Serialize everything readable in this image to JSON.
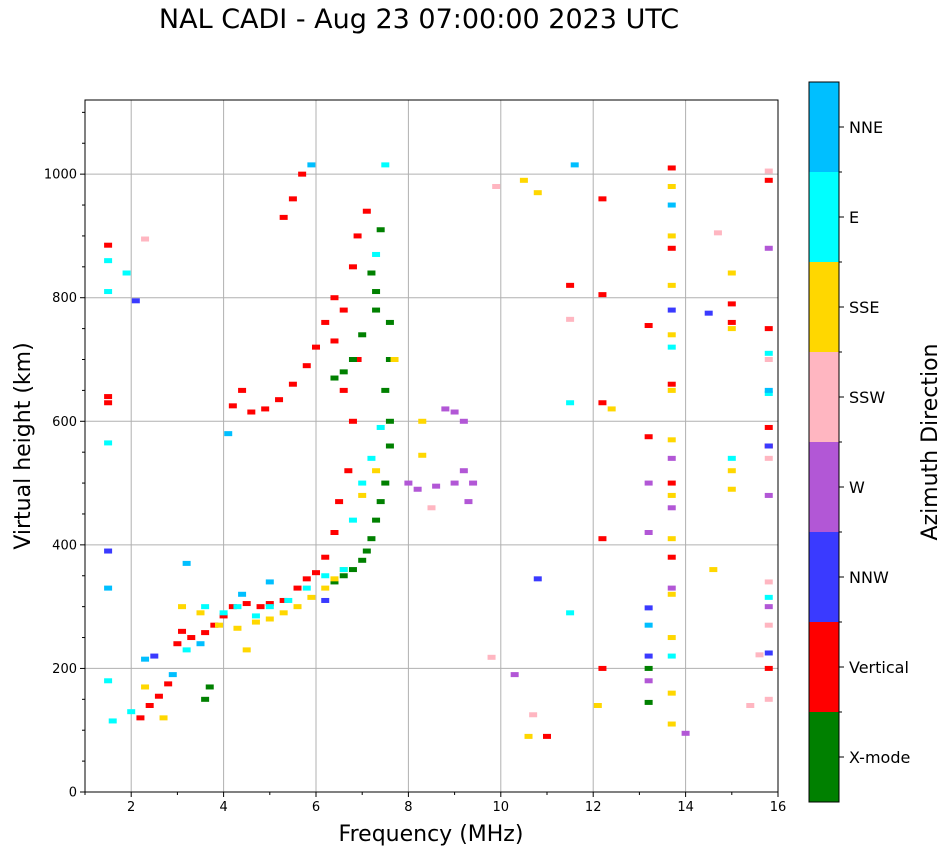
{
  "chart_data": {
    "type": "scatter",
    "title": "NAL CADI - Aug 23 07:00:00 2023 UTC",
    "xlabel": "Frequency (MHz)",
    "ylabel": "Virtual height (km)",
    "xlim": [
      1,
      16
    ],
    "ylim": [
      0,
      1120
    ],
    "xticks": [
      2,
      4,
      6,
      8,
      10,
      12,
      14,
      16
    ],
    "yticks": [
      0,
      200,
      400,
      600,
      800,
      1000
    ],
    "grid": true,
    "colorbar": {
      "label": "Azimuth Direction",
      "categories": [
        {
          "name": "X-mode",
          "color": "#008000"
        },
        {
          "name": "Vertical",
          "color": "#ff0000"
        },
        {
          "name": "NNW",
          "color": "#3a3aff"
        },
        {
          "name": "W",
          "color": "#b257d6"
        },
        {
          "name": "SSW",
          "color": "#ffb6c1"
        },
        {
          "name": "SSE",
          "color": "#ffd700"
        },
        {
          "name": "E",
          "color": "#00ffff"
        },
        {
          "name": "NNE",
          "color": "#00bfff"
        }
      ]
    },
    "series": [
      {
        "name": "Vertical",
        "points": [
          [
            1.5,
            885
          ],
          [
            1.5,
            640
          ],
          [
            1.5,
            630
          ],
          [
            2.2,
            120
          ],
          [
            2.4,
            140
          ],
          [
            2.6,
            155
          ],
          [
            2.8,
            175
          ],
          [
            3.0,
            240
          ],
          [
            3.1,
            260
          ],
          [
            3.3,
            250
          ],
          [
            3.6,
            258
          ],
          [
            3.8,
            270
          ],
          [
            4.0,
            285
          ],
          [
            4.2,
            300
          ],
          [
            4.5,
            305
          ],
          [
            4.8,
            300
          ],
          [
            5.0,
            305
          ],
          [
            5.3,
            310
          ],
          [
            5.6,
            330
          ],
          [
            5.8,
            345
          ],
          [
            6.0,
            355
          ],
          [
            6.2,
            380
          ],
          [
            6.4,
            420
          ],
          [
            6.5,
            470
          ],
          [
            6.7,
            520
          ],
          [
            6.8,
            600
          ],
          [
            6.6,
            650
          ],
          [
            6.9,
            700
          ],
          [
            6.4,
            730
          ],
          [
            6.6,
            780
          ],
          [
            6.8,
            850
          ],
          [
            6.9,
            900
          ],
          [
            7.1,
            940
          ],
          [
            4.6,
            615
          ],
          [
            4.9,
            620
          ],
          [
            5.2,
            635
          ],
          [
            5.5,
            660
          ],
          [
            5.8,
            690
          ],
          [
            6.0,
            720
          ],
          [
            6.2,
            760
          ],
          [
            6.4,
            800
          ],
          [
            5.7,
            1000
          ],
          [
            5.5,
            960
          ],
          [
            5.3,
            930
          ],
          [
            4.2,
            625
          ],
          [
            4.4,
            650
          ],
          [
            12.2,
            960
          ],
          [
            12.2,
            805
          ],
          [
            12.2,
            630
          ],
          [
            12.2,
            410
          ],
          [
            12.2,
            200
          ],
          [
            13.2,
            755
          ],
          [
            13.2,
            575
          ],
          [
            13.7,
            1010
          ],
          [
            13.7,
            880
          ],
          [
            13.7,
            660
          ],
          [
            13.7,
            500
          ],
          [
            13.7,
            380
          ],
          [
            15.0,
            790
          ],
          [
            15.0,
            760
          ],
          [
            15.8,
            990
          ],
          [
            15.8,
            750
          ],
          [
            15.8,
            590
          ],
          [
            15.8,
            560
          ],
          [
            15.8,
            200
          ],
          [
            11.0,
            90
          ],
          [
            11.5,
            820
          ]
        ]
      },
      {
        "name": "X-mode",
        "points": [
          [
            7.6,
            760
          ],
          [
            7.6,
            700
          ],
          [
            7.5,
            650
          ],
          [
            7.6,
            600
          ],
          [
            7.6,
            560
          ],
          [
            7.5,
            500
          ],
          [
            7.4,
            470
          ],
          [
            7.3,
            440
          ],
          [
            7.2,
            410
          ],
          [
            7.1,
            390
          ],
          [
            7.0,
            375
          ],
          [
            6.8,
            360
          ],
          [
            6.6,
            350
          ],
          [
            6.4,
            340
          ],
          [
            7.2,
            840
          ],
          [
            7.3,
            810
          ],
          [
            7.3,
            780
          ],
          [
            7.0,
            740
          ],
          [
            6.8,
            700
          ],
          [
            6.6,
            680
          ],
          [
            6.4,
            670
          ],
          [
            7.4,
            910
          ],
          [
            3.7,
            170
          ],
          [
            3.6,
            150
          ],
          [
            13.2,
            200
          ],
          [
            13.2,
            145
          ]
        ]
      },
      {
        "name": "NNW",
        "points": [
          [
            2.1,
            795
          ],
          [
            1.5,
            390
          ],
          [
            2.5,
            220
          ],
          [
            6.2,
            310
          ],
          [
            14.5,
            775
          ],
          [
            13.2,
            298
          ],
          [
            13.2,
            220
          ],
          [
            10.8,
            345
          ],
          [
            13.7,
            780
          ],
          [
            15.8,
            225
          ],
          [
            15.8,
            560
          ]
        ]
      },
      {
        "name": "W",
        "points": [
          [
            8.0,
            500
          ],
          [
            8.2,
            490
          ],
          [
            8.6,
            495
          ],
          [
            9.0,
            500
          ],
          [
            9.2,
            520
          ],
          [
            9.4,
            500
          ],
          [
            9.3,
            470
          ],
          [
            8.8,
            620
          ],
          [
            9.2,
            600
          ],
          [
            9.0,
            615
          ],
          [
            13.2,
            500
          ],
          [
            13.2,
            420
          ],
          [
            13.2,
            180
          ],
          [
            13.7,
            540
          ],
          [
            13.7,
            460
          ],
          [
            13.7,
            330
          ],
          [
            14.0,
            95
          ],
          [
            10.3,
            190
          ],
          [
            15.8,
            880
          ],
          [
            15.8,
            480
          ],
          [
            15.8,
            300
          ]
        ]
      },
      {
        "name": "SSW",
        "points": [
          [
            2.3,
            895
          ],
          [
            8.5,
            460
          ],
          [
            9.8,
            218
          ],
          [
            9.9,
            980
          ],
          [
            10.7,
            125
          ],
          [
            11.5,
            765
          ],
          [
            14.7,
            905
          ],
          [
            15.4,
            140
          ],
          [
            15.6,
            222
          ],
          [
            15.8,
            700
          ],
          [
            15.8,
            540
          ],
          [
            15.8,
            340
          ],
          [
            15.8,
            270
          ],
          [
            15.8,
            150
          ],
          [
            15.8,
            1005
          ]
        ]
      },
      {
        "name": "SSE",
        "points": [
          [
            2.3,
            170
          ],
          [
            2.7,
            120
          ],
          [
            3.1,
            300
          ],
          [
            3.5,
            290
          ],
          [
            3.9,
            270
          ],
          [
            4.3,
            265
          ],
          [
            4.7,
            275
          ],
          [
            5.0,
            280
          ],
          [
            5.3,
            290
          ],
          [
            5.6,
            300
          ],
          [
            5.9,
            315
          ],
          [
            6.2,
            330
          ],
          [
            6.4,
            345
          ],
          [
            6.6,
            360
          ],
          [
            7.0,
            480
          ],
          [
            7.3,
            520
          ],
          [
            7.7,
            700
          ],
          [
            8.3,
            545
          ],
          [
            8.3,
            600
          ],
          [
            10.5,
            990
          ],
          [
            10.8,
            970
          ],
          [
            12.4,
            620
          ],
          [
            13.7,
            980
          ],
          [
            13.7,
            900
          ],
          [
            13.7,
            820
          ],
          [
            13.7,
            740
          ],
          [
            13.7,
            650
          ],
          [
            13.7,
            570
          ],
          [
            13.7,
            480
          ],
          [
            13.7,
            410
          ],
          [
            13.7,
            320
          ],
          [
            13.7,
            250
          ],
          [
            13.7,
            160
          ],
          [
            13.7,
            110
          ],
          [
            14.6,
            360
          ],
          [
            15.0,
            840
          ],
          [
            15.0,
            750
          ],
          [
            15.0,
            520
          ],
          [
            15.0,
            490
          ],
          [
            10.6,
            90
          ],
          [
            12.1,
            140
          ],
          [
            4.5,
            230
          ]
        ]
      },
      {
        "name": "E",
        "points": [
          [
            1.5,
            860
          ],
          [
            1.5,
            810
          ],
          [
            1.9,
            840
          ],
          [
            1.5,
            565
          ],
          [
            1.5,
            180
          ],
          [
            1.6,
            115
          ],
          [
            2.0,
            130
          ],
          [
            3.2,
            230
          ],
          [
            3.6,
            300
          ],
          [
            4.0,
            290
          ],
          [
            4.3,
            300
          ],
          [
            4.7,
            285
          ],
          [
            5.0,
            300
          ],
          [
            5.4,
            310
          ],
          [
            5.8,
            330
          ],
          [
            6.2,
            350
          ],
          [
            6.6,
            360
          ],
          [
            6.8,
            440
          ],
          [
            7.0,
            500
          ],
          [
            7.2,
            540
          ],
          [
            7.4,
            590
          ],
          [
            7.3,
            870
          ],
          [
            7.5,
            1015
          ],
          [
            11.5,
            290
          ],
          [
            11.5,
            630
          ],
          [
            13.7,
            720
          ],
          [
            13.7,
            220
          ],
          [
            15.0,
            540
          ],
          [
            15.8,
            710
          ],
          [
            15.8,
            645
          ],
          [
            15.8,
            315
          ]
        ]
      },
      {
        "name": "NNE",
        "points": [
          [
            1.5,
            330
          ],
          [
            2.3,
            215
          ],
          [
            2.9,
            190
          ],
          [
            3.2,
            370
          ],
          [
            3.5,
            240
          ],
          [
            4.1,
            580
          ],
          [
            4.4,
            320
          ],
          [
            5.0,
            340
          ],
          [
            5.9,
            1015
          ],
          [
            11.6,
            1015
          ],
          [
            13.2,
            270
          ],
          [
            13.7,
            950
          ],
          [
            15.8,
            650
          ]
        ]
      }
    ]
  }
}
